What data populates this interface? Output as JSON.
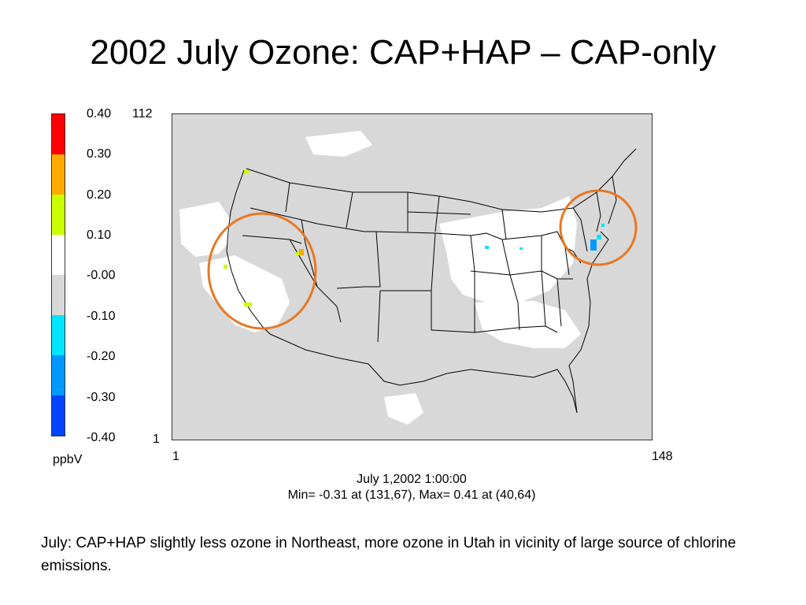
{
  "slide": {
    "title": "2002 July Ozone: CAP+HAP – CAP-only",
    "caption": "July:  CAP+HAP  slightly less ozone in Northeast, more ozone in Utah in vicinity of large source of chlorine emissions."
  },
  "colorbar": {
    "unit": "ppbV",
    "labels": [
      "0.40",
      "0.30",
      "0.20",
      "0.10",
      "-0.00",
      "-0.10",
      "-0.20",
      "-0.30",
      "-0.40"
    ],
    "colors": [
      "#ff0000",
      "#ffaa00",
      "#ccff00",
      "#ffffff",
      "#d8d8d8",
      "#00e5ff",
      "#0099ff",
      "#0044ff"
    ]
  },
  "grid_axes": {
    "y_top": "112",
    "y_bottom": "1",
    "x_left": "1",
    "x_right": "148"
  },
  "plot_info": {
    "timestamp": "July 1,2002 1:00:00",
    "stats": "Min=   -0.31 at (131,67), Max=    0.41 at (40,64)"
  },
  "highlights": [
    {
      "name": "west-coast-utah",
      "color": "#e87722"
    },
    {
      "name": "northeast",
      "color": "#e87722"
    }
  ],
  "map_colors": {
    "background": "#d8d8d8",
    "near_zero_white": "#ffffff",
    "outline": "#000000"
  }
}
